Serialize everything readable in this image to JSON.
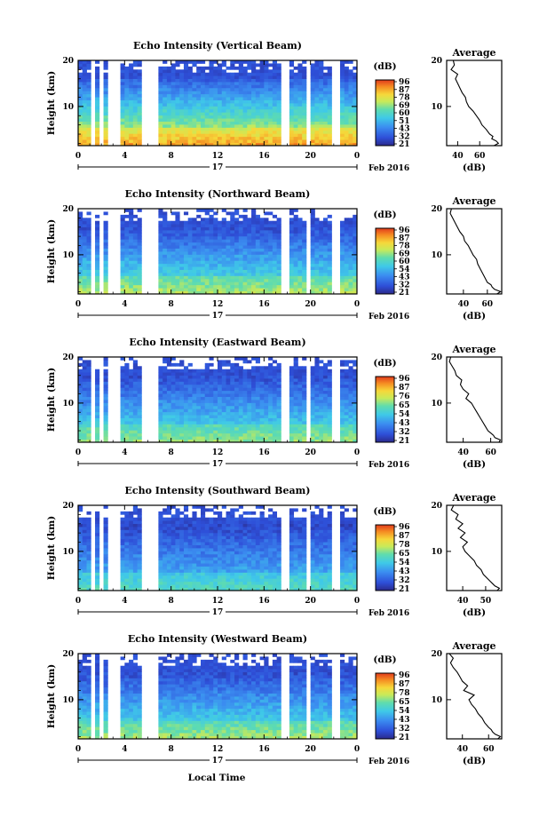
{
  "figure": {
    "x_axis_label": "Local Time",
    "date_label": "17",
    "month_label": "Feb 2016"
  },
  "chart_data": [
    {
      "type": "heatmap",
      "title": "Echo Intensity (Vertical Beam)",
      "ylabel": "Height (km)",
      "xlim": [
        0,
        24
      ],
      "ylim": [
        1.5,
        20
      ],
      "xticks": [
        "0",
        "4",
        "8",
        "12",
        "16",
        "20",
        "0"
      ],
      "yticks": [
        "10",
        "20"
      ],
      "colorbar": {
        "unit": "(dB)",
        "ticks": [
          "96",
          "87",
          "78",
          "69",
          "60",
          "51",
          "43",
          "32",
          "21"
        ],
        "range": [
          21,
          96
        ]
      },
      "profile": {
        "title": "Average",
        "xlabel": "(dB)",
        "xlim": [
          30,
          80
        ],
        "xticks": [
          40,
          60
        ],
        "height": [
          1.5,
          2,
          2.5,
          3,
          3.5,
          4,
          5,
          6,
          7,
          8,
          9,
          10,
          11,
          12,
          13,
          14,
          15,
          16,
          17,
          18,
          19,
          20
        ],
        "values": [
          73,
          77,
          75,
          71,
          72,
          69,
          66,
          62,
          60,
          57,
          54,
          50,
          48,
          47,
          44,
          42,
          40,
          38,
          40,
          34,
          37,
          36
        ]
      }
    },
    {
      "type": "heatmap",
      "title": "Echo Intensity (Northward Beam)",
      "ylabel": "Height (km)",
      "xlim": [
        0,
        24
      ],
      "ylim": [
        1.5,
        20
      ],
      "xticks": [
        "0",
        "4",
        "8",
        "12",
        "16",
        "20",
        "0"
      ],
      "yticks": [
        "10",
        "20"
      ],
      "colorbar": {
        "unit": "(dB)",
        "ticks": [
          "96",
          "87",
          "78",
          "69",
          "60",
          "54",
          "43",
          "32",
          "21"
        ],
        "range": [
          21,
          96
        ]
      },
      "profile": {
        "title": "Average",
        "xlabel": "(dB)",
        "xlim": [
          26,
          72
        ],
        "xticks": [
          40,
          60
        ],
        "height": [
          1.5,
          2,
          2.5,
          3,
          3.5,
          4,
          5,
          6,
          7,
          8,
          9,
          10,
          11,
          12,
          13,
          14,
          15,
          16,
          17,
          18,
          19,
          20
        ],
        "values": [
          68,
          71,
          66,
          64,
          63,
          60,
          58,
          56,
          54,
          52,
          51,
          48,
          46,
          44,
          41,
          40,
          37,
          35,
          33,
          31,
          29,
          30
        ]
      }
    },
    {
      "type": "heatmap",
      "title": "Echo Intensity (Eastward Beam)",
      "ylabel": "Height (km)",
      "xlim": [
        0,
        24
      ],
      "ylim": [
        1.5,
        20
      ],
      "xticks": [
        "0",
        "4",
        "8",
        "12",
        "16",
        "20",
        "0"
      ],
      "yticks": [
        "10",
        "20"
      ],
      "colorbar": {
        "unit": "(dB)",
        "ticks": [
          "96",
          "87",
          "76",
          "65",
          "54",
          "43",
          "32",
          "21"
        ],
        "range": [
          21,
          96
        ]
      },
      "profile": {
        "title": "Average",
        "xlabel": "(dB)",
        "xlim": [
          28,
          68
        ],
        "xticks": [
          40,
          60
        ],
        "height": [
          1.5,
          2,
          2.5,
          3,
          3.5,
          4,
          5,
          6,
          7,
          8,
          9,
          10,
          11,
          12,
          13,
          14,
          15,
          16,
          17,
          18,
          19,
          20
        ],
        "values": [
          66,
          67,
          63,
          62,
          60,
          58,
          56,
          54,
          52,
          50,
          48,
          46,
          42,
          44,
          40,
          38,
          39,
          35,
          34,
          32,
          30,
          31
        ]
      }
    },
    {
      "type": "heatmap",
      "title": "Echo Intensity (Southward Beam)",
      "ylabel": "Height (km)",
      "xlim": [
        0,
        24
      ],
      "ylim": [
        1.5,
        20
      ],
      "xticks": [
        "0",
        "4",
        "8",
        "12",
        "16",
        "20",
        "0"
      ],
      "yticks": [
        "10",
        "20"
      ],
      "colorbar": {
        "unit": "(dB)",
        "ticks": [
          "96",
          "87",
          "78",
          "65",
          "54",
          "43",
          "32",
          "21"
        ],
        "range": [
          21,
          96
        ]
      },
      "profile": {
        "title": "Average",
        "xlabel": "(dB)",
        "xlim": [
          33,
          57
        ],
        "xticks": [
          40,
          50
        ],
        "height": [
          1.5,
          2,
          2.5,
          3,
          3.5,
          4,
          5,
          6,
          7,
          8,
          9,
          10,
          11,
          12,
          13,
          14,
          15,
          16,
          17,
          18,
          19,
          20
        ],
        "values": [
          55,
          56,
          54,
          53,
          52,
          51,
          49,
          48,
          46,
          45,
          43,
          41,
          40,
          42,
          39,
          41,
          38,
          40,
          37,
          38,
          35,
          36
        ]
      }
    },
    {
      "type": "heatmap",
      "title": "Echo Intensity (Westward Beam)",
      "ylabel": "Height (km)",
      "xlim": [
        0,
        24
      ],
      "ylim": [
        1.5,
        20
      ],
      "xticks": [
        "0",
        "4",
        "8",
        "12",
        "16",
        "20",
        "0"
      ],
      "yticks": [
        "10",
        "20"
      ],
      "colorbar": {
        "unit": "(dB)",
        "ticks": [
          "96",
          "87",
          "78",
          "65",
          "54",
          "43",
          "32",
          "21"
        ],
        "range": [
          21,
          96
        ]
      },
      "profile": {
        "title": "Average",
        "xlabel": "(dB)",
        "xlim": [
          28,
          70
        ],
        "xticks": [
          40,
          60
        ],
        "height": [
          1.5,
          2,
          2.5,
          3,
          3.5,
          4,
          5,
          6,
          7,
          8,
          9,
          10,
          11,
          12,
          13,
          14,
          15,
          16,
          17,
          18,
          19,
          20
        ],
        "values": [
          67,
          69,
          65,
          63,
          62,
          60,
          57,
          55,
          52,
          50,
          47,
          45,
          49,
          41,
          44,
          40,
          38,
          36,
          33,
          31,
          33,
          30
        ]
      }
    }
  ]
}
